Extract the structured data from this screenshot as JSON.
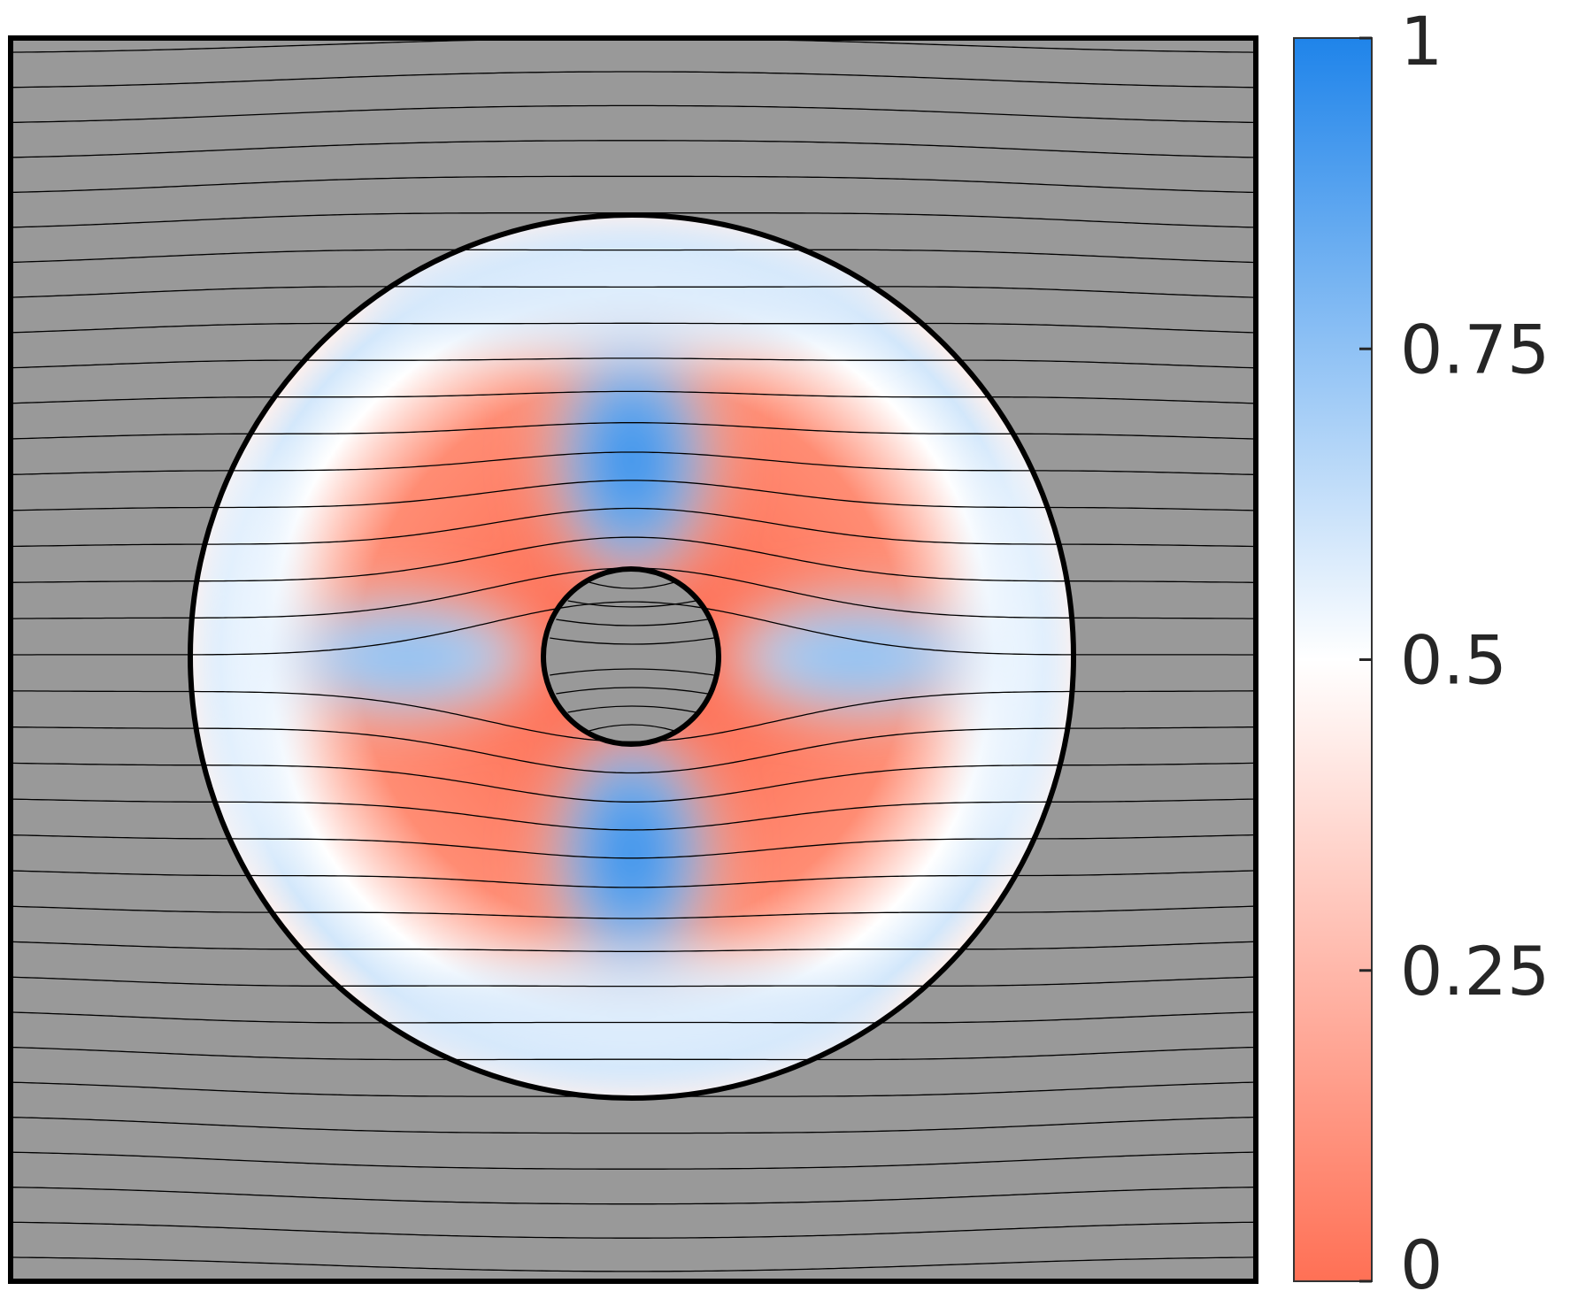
{
  "figure": {
    "background_color": "#999999",
    "colormap": {
      "min_color": "#ff7055",
      "mid_color": "#ffffff",
      "max_color": "#1f84ea",
      "range": [
        0,
        1
      ]
    },
    "colorbar": {
      "ticks": [
        {
          "value": 0,
          "label": "0"
        },
        {
          "value": 0.25,
          "label": "0.25"
        },
        {
          "value": 0.5,
          "label": "0.5"
        },
        {
          "value": 0.75,
          "label": "0.75"
        },
        {
          "value": 1,
          "label": "1"
        }
      ]
    }
  }
}
